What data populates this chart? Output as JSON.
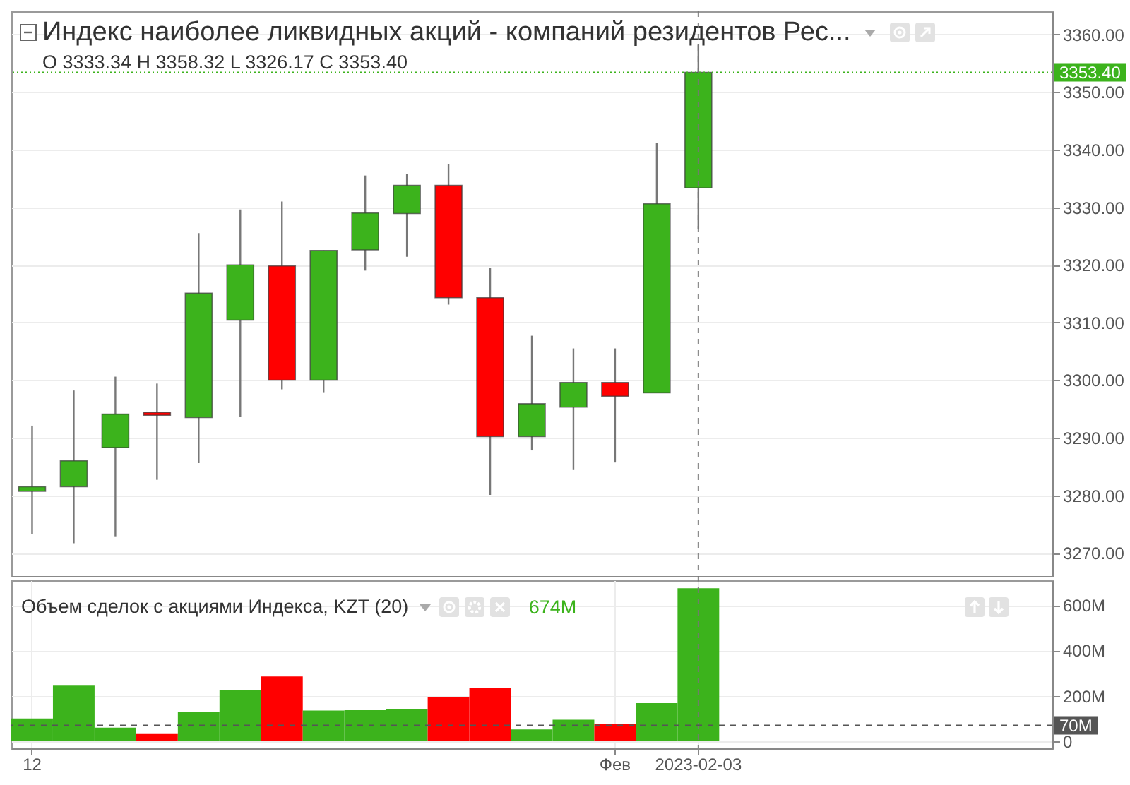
{
  "chart_data": [
    {
      "type": "candlestick",
      "title": "Индекс наиболее ликвидных акций - компаний резидентов Рес...",
      "subtitle": "O 3333.34 H 3358.32 L 3326.17 C 3353.40",
      "categories": [
        null,
        null,
        null,
        null,
        null,
        null,
        null,
        null,
        null,
        null,
        null,
        null,
        null,
        null,
        null,
        null,
        null,
        null,
        null,
        null,
        null,
        null,
        null,
        null,
        null
      ],
      "ohlc": [
        [
          3280.7,
          3292.1,
          3273.3,
          3281.5
        ],
        [
          3281.5,
          3298.2,
          3271.7,
          3286.0
        ],
        [
          3288.3,
          3300.6,
          3272.9,
          3294.1
        ],
        [
          3294.4,
          3299.4,
          3282.7,
          3293.9
        ],
        [
          3293.5,
          3325.5,
          3285.6,
          3315.1
        ],
        [
          3310.4,
          3329.6,
          3293.7,
          3320.0
        ],
        [
          3319.8,
          3331.0,
          3298.4,
          3300.0
        ],
        [
          3300.0,
          3322.5,
          3297.9,
          3322.5
        ],
        [
          3322.6,
          3335.5,
          3319.0,
          3329.0
        ],
        [
          3328.9,
          3335.8,
          3321.4,
          3333.8
        ],
        [
          3333.8,
          3337.5,
          3313.1,
          3314.3
        ],
        [
          3314.3,
          3319.4,
          3280.1,
          3290.2
        ],
        [
          3290.2,
          3307.7,
          3287.8,
          3295.9
        ],
        [
          3295.3,
          3305.5,
          3284.4,
          3299.6
        ],
        [
          3299.6,
          3305.5,
          3285.7,
          3297.2
        ],
        [
          3297.8,
          3341.1,
          3297.8,
          3330.6
        ],
        [
          3333.34,
          3358.32,
          3326.17,
          3353.4
        ],
        null,
        null,
        null,
        null,
        null,
        null,
        null,
        null
      ],
      "colors": [
        "#3cb31c",
        "#3cb31c",
        "#3cb31c",
        "#ff0000",
        "#3cb31c",
        "#3cb31c",
        "#ff0000",
        "#3cb31c",
        "#3cb31c",
        "#3cb31c",
        "#ff0000",
        "#ff0000",
        "#3cb31c",
        "#3cb31c",
        "#ff0000",
        "#3cb31c",
        "#3cb31c",
        null,
        null,
        null,
        null,
        null,
        null,
        null,
        null
      ],
      "ylim": [
        3266,
        3364
      ],
      "yticks": [
        {
          "value": 3270,
          "label": "3270.00"
        },
        {
          "value": 3280,
          "label": "3280.00"
        },
        {
          "value": 3290,
          "label": "3290.00"
        },
        {
          "value": 3300,
          "label": "3300.00"
        },
        {
          "value": 3310,
          "label": "3310.00"
        },
        {
          "value": 3320,
          "label": "3320.00"
        },
        {
          "value": 3330,
          "label": "3330.00"
        },
        {
          "value": 3340,
          "label": "3340.00"
        },
        {
          "value": 3350,
          "label": "3350.00"
        },
        {
          "value": 3360,
          "label": "3360.00"
        }
      ],
      "grid": true,
      "tick_labels": "y",
      "ref_lines": [
        {
          "axis": "y",
          "value": 3353.4,
          "label": "3353.40",
          "color": "#3cb31c",
          "line_style": "dotted"
        }
      ]
    },
    {
      "type": "bar",
      "title": "Объем сделок с акциями Индекса, KZT (20)",
      "annotations": [
        "674M"
      ],
      "categories": [
        "12",
        null,
        null,
        null,
        null,
        null,
        null,
        null,
        null,
        null,
        null,
        null,
        null,
        null,
        "Фев",
        null,
        "2023-02-03",
        null,
        null,
        null,
        null,
        null,
        null,
        null,
        null
      ],
      "values": [
        100,
        245,
        60,
        32,
        130,
        225,
        285,
        135,
        137,
        142,
        195,
        235,
        52,
        95,
        78,
        168,
        674,
        null,
        null,
        null,
        null,
        null,
        null,
        null,
        null
      ],
      "colors": [
        "#3cb31c",
        "#3cb31c",
        "#3cb31c",
        "#ff0000",
        "#3cb31c",
        "#3cb31c",
        "#ff0000",
        "#3cb31c",
        "#3cb31c",
        "#3cb31c",
        "#ff0000",
        "#ff0000",
        "#3cb31c",
        "#3cb31c",
        "#ff0000",
        "#3cb31c",
        "#3cb31c",
        null,
        null,
        null,
        null,
        null,
        null,
        null,
        null
      ],
      "ylim": [
        -31,
        709
      ],
      "yticks": [
        0,
        {
          "value": 200,
          "label": "200M"
        },
        {
          "value": 400,
          "label": "400M"
        },
        {
          "value": 600,
          "label": "600M"
        }
      ],
      "grid": true,
      "ref_lines": [
        {
          "axis": "x",
          "value": "2023-02-03",
          "color": "#777777",
          "line_style": "dashed"
        },
        {
          "axis": "y",
          "value": 70,
          "label": "70M",
          "color": "#555555",
          "line_style": "dashed"
        }
      ]
    }
  ]
}
